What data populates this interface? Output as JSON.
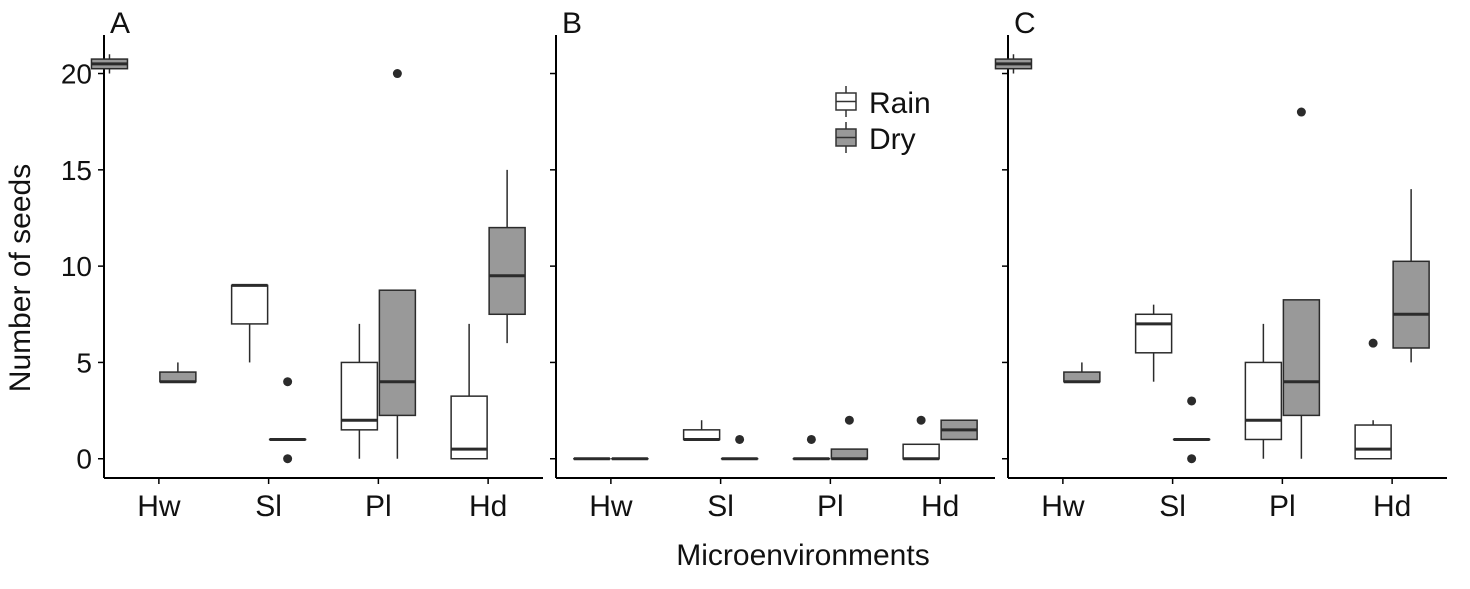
{
  "y_axis_label": "Number of seeds",
  "x_axis_label": "Microenvironments",
  "legend": {
    "entries": [
      {
        "label": "Rain",
        "color": "#ffffff"
      },
      {
        "label": "Dry",
        "color": "#999999"
      }
    ]
  },
  "chart_data": [
    {
      "type": "boxplot",
      "panel": "A",
      "title": "A",
      "categories": [
        "Hw",
        "Sl",
        "Pl",
        "Hd"
      ],
      "xlabel": "Microenvironments",
      "ylabel": "Number of seeds",
      "ylim": [
        -1,
        22
      ],
      "yticks": [
        0,
        5,
        10,
        15,
        20
      ],
      "series": [
        {
          "name": "Rain",
          "color": "#ffffff",
          "boxes": [
            null,
            {
              "q1": 7,
              "median": 9,
              "q3": 9,
              "whisker_low": 5,
              "whisker_high": 9,
              "outliers": []
            },
            {
              "q1": 1.5,
              "median": 2,
              "q3": 5,
              "whisker_low": 0,
              "whisker_high": 7,
              "outliers": []
            },
            {
              "q1": 0,
              "median": 0.5,
              "q3": 3.25,
              "whisker_low": 0,
              "whisker_high": 7,
              "outliers": []
            }
          ]
        },
        {
          "name": "Dry",
          "color": "#999999",
          "boxes": [
            {
              "q1": 4,
              "median": 4,
              "q3": 4.5,
              "whisker_low": 4,
              "whisker_high": 5,
              "outliers": []
            },
            {
              "q1": 1,
              "median": 1,
              "q3": 1,
              "whisker_low": 1,
              "whisker_high": 1,
              "outliers": [
                4,
                0
              ]
            },
            {
              "q1": 2.25,
              "median": 4,
              "q3": 8.75,
              "whisker_low": 0,
              "whisker_high": 8.75,
              "outliers": [
                20
              ]
            },
            {
              "q1": 7.5,
              "median": 9.5,
              "q3": 12,
              "whisker_low": 6,
              "whisker_high": 15,
              "outliers": []
            }
          ]
        }
      ],
      "combined_first_category": {
        "q1": 20.25,
        "median": 20.5,
        "q3": 20.75,
        "whisker_low": 20,
        "whisker_high": 21
      }
    },
    {
      "type": "boxplot",
      "panel": "B",
      "title": "B",
      "categories": [
        "Hw",
        "Sl",
        "Pl",
        "Hd"
      ],
      "xlabel": "Microenvironments",
      "ylim": [
        -1,
        22
      ],
      "series": [
        {
          "name": "Rain",
          "color": "#ffffff",
          "boxes": [
            {
              "q1": 0,
              "median": 0,
              "q3": 0,
              "whisker_low": 0,
              "whisker_high": 0,
              "outliers": []
            },
            {
              "q1": 1,
              "median": 1,
              "q3": 1.5,
              "whisker_low": 1,
              "whisker_high": 2,
              "outliers": []
            },
            {
              "q1": 0,
              "median": 0,
              "q3": 0,
              "whisker_low": 0,
              "whisker_high": 0,
              "outliers": [
                1
              ]
            },
            {
              "q1": 0,
              "median": 0,
              "q3": 0.75,
              "whisker_low": 0,
              "whisker_high": 0.75,
              "outliers": [
                2
              ]
            }
          ]
        },
        {
          "name": "Dry",
          "color": "#999999",
          "boxes": [
            {
              "q1": 0,
              "median": 0,
              "q3": 0,
              "whisker_low": 0,
              "whisker_high": 0,
              "outliers": []
            },
            {
              "q1": 0,
              "median": 0,
              "q3": 0,
              "whisker_low": 0,
              "whisker_high": 0,
              "outliers": [
                1
              ]
            },
            {
              "q1": 0,
              "median": 0,
              "q3": 0.5,
              "whisker_low": 0,
              "whisker_high": 0.5,
              "outliers": [
                2
              ]
            },
            {
              "q1": 1,
              "median": 1.5,
              "q3": 2,
              "whisker_low": 1,
              "whisker_high": 2,
              "outliers": []
            }
          ]
        }
      ]
    },
    {
      "type": "boxplot",
      "panel": "C",
      "title": "C",
      "categories": [
        "Hw",
        "Sl",
        "Pl",
        "Hd"
      ],
      "xlabel": "Microenvironments",
      "ylim": [
        -1,
        22
      ],
      "series": [
        {
          "name": "Rain",
          "color": "#ffffff",
          "boxes": [
            null,
            {
              "q1": 5.5,
              "median": 7,
              "q3": 7.5,
              "whisker_low": 4,
              "whisker_high": 8,
              "outliers": []
            },
            {
              "q1": 1,
              "median": 2,
              "q3": 5,
              "whisker_low": 0,
              "whisker_high": 7,
              "outliers": []
            },
            {
              "q1": 0,
              "median": 0.5,
              "q3": 1.75,
              "whisker_low": 0,
              "whisker_high": 2,
              "outliers": [
                6
              ]
            }
          ]
        },
        {
          "name": "Dry",
          "color": "#999999",
          "boxes": [
            {
              "q1": 4,
              "median": 4,
              "q3": 4.5,
              "whisker_low": 4,
              "whisker_high": 5,
              "outliers": []
            },
            {
              "q1": 1,
              "median": 1,
              "q3": 1,
              "whisker_low": 1,
              "whisker_high": 1,
              "outliers": [
                3,
                0
              ]
            },
            {
              "q1": 2.25,
              "median": 4,
              "q3": 8.25,
              "whisker_low": 0,
              "whisker_high": 8.25,
              "outliers": [
                18
              ]
            },
            {
              "q1": 5.75,
              "median": 7.5,
              "q3": 10.25,
              "whisker_low": 5,
              "whisker_high": 14,
              "outliers": []
            }
          ]
        }
      ],
      "combined_first_category": {
        "q1": 20.25,
        "median": 20.5,
        "q3": 20.75,
        "whisker_low": 20,
        "whisker_high": 21
      }
    }
  ]
}
